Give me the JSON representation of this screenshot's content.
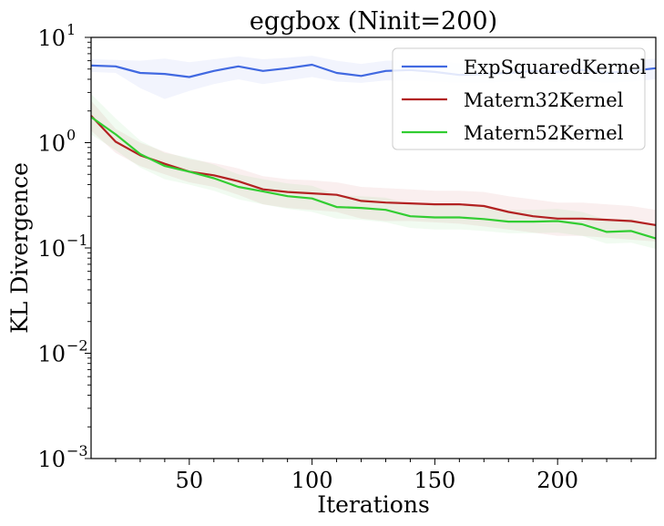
{
  "chart_data": {
    "type": "line",
    "title": "eggbox (Ninit=200)",
    "xlabel": "Iterations",
    "ylabel": "KL Divergence",
    "yscale": "log",
    "xlim": [
      10,
      240
    ],
    "ylim": [
      0.001,
      10
    ],
    "x_ticks": [
      50,
      100,
      150,
      200
    ],
    "y_ticks": [
      {
        "value": 10,
        "label": "10",
        "exp": "1"
      },
      {
        "value": 1,
        "label": "10",
        "exp": "0"
      },
      {
        "value": 0.1,
        "label": "10",
        "exp": "−1"
      },
      {
        "value": 0.01,
        "label": "10",
        "exp": "−2"
      },
      {
        "value": 0.001,
        "label": "10",
        "exp": "−3"
      }
    ],
    "legend_position": "top-right",
    "grid": false,
    "series": [
      {
        "name": "ExpSquaredKernel",
        "color": "#4169e1",
        "x": [
          10,
          20,
          30,
          40,
          50,
          60,
          70,
          80,
          90,
          100,
          110,
          120,
          130,
          140,
          150,
          160,
          170,
          180,
          190,
          200,
          210,
          220,
          230,
          240
        ],
        "y": [
          5.4,
          5.3,
          4.6,
          4.5,
          4.2,
          4.8,
          5.3,
          4.8,
          5.1,
          5.5,
          4.6,
          4.3,
          4.8,
          4.9,
          4.7,
          4.4,
          4.5,
          4.6,
          4.8,
          4.7,
          4.9,
          4.6,
          4.8,
          5.1
        ],
        "lower": [
          4.7,
          4.6,
          3.3,
          2.6,
          3.1,
          3.6,
          4.0,
          3.6,
          3.9,
          4.2,
          3.8,
          3.7,
          3.9,
          3.9,
          3.8,
          3.7,
          3.7,
          3.8,
          3.9,
          3.8,
          3.9,
          3.7,
          3.8,
          4.0
        ],
        "upper": [
          6.2,
          6.1,
          6.0,
          6.3,
          5.8,
          6.2,
          6.6,
          6.2,
          6.4,
          6.7,
          6.0,
          5.6,
          6.0,
          6.1,
          5.9,
          5.7,
          5.8,
          5.8,
          6.0,
          5.9,
          6.1,
          5.8,
          6.0,
          6.3
        ]
      },
      {
        "name": "Matern32Kernel",
        "color": "#b22222",
        "x": [
          10,
          20,
          30,
          40,
          50,
          60,
          70,
          80,
          90,
          100,
          110,
          120,
          130,
          140,
          150,
          160,
          170,
          180,
          190,
          200,
          210,
          220,
          230,
          240
        ],
        "y": [
          1.8,
          1.02,
          0.76,
          0.63,
          0.53,
          0.49,
          0.43,
          0.36,
          0.34,
          0.33,
          0.32,
          0.28,
          0.27,
          0.265,
          0.26,
          0.26,
          0.25,
          0.22,
          0.2,
          0.19,
          0.19,
          0.185,
          0.18,
          0.165
        ],
        "lower": [
          1.3,
          0.8,
          0.6,
          0.5,
          0.42,
          0.38,
          0.32,
          0.26,
          0.24,
          0.23,
          0.22,
          0.19,
          0.18,
          0.18,
          0.175,
          0.17,
          0.16,
          0.15,
          0.14,
          0.13,
          0.13,
          0.125,
          0.12,
          0.115
        ],
        "upper": [
          2.5,
          1.35,
          1.0,
          0.82,
          0.7,
          0.64,
          0.57,
          0.48,
          0.45,
          0.44,
          0.42,
          0.38,
          0.37,
          0.36,
          0.35,
          0.35,
          0.34,
          0.31,
          0.29,
          0.27,
          0.27,
          0.26,
          0.25,
          0.23
        ]
      },
      {
        "name": "Matern52Kernel",
        "color": "#32cd32",
        "x": [
          10,
          20,
          30,
          40,
          50,
          60,
          70,
          80,
          90,
          100,
          110,
          120,
          130,
          140,
          150,
          160,
          170,
          180,
          190,
          200,
          210,
          220,
          230,
          240
        ],
        "y": [
          1.75,
          1.2,
          0.78,
          0.6,
          0.53,
          0.46,
          0.38,
          0.345,
          0.31,
          0.295,
          0.245,
          0.24,
          0.23,
          0.2,
          0.195,
          0.195,
          0.188,
          0.178,
          0.178,
          0.18,
          0.168,
          0.142,
          0.145,
          0.123
        ],
        "lower": [
          1.2,
          0.85,
          0.58,
          0.45,
          0.4,
          0.35,
          0.29,
          0.26,
          0.235,
          0.22,
          0.19,
          0.185,
          0.175,
          0.155,
          0.15,
          0.15,
          0.145,
          0.138,
          0.138,
          0.14,
          0.13,
          0.11,
          0.112,
          0.098
        ],
        "upper": [
          2.9,
          1.7,
          1.05,
          0.8,
          0.72,
          0.62,
          0.5,
          0.45,
          0.41,
          0.39,
          0.32,
          0.31,
          0.3,
          0.26,
          0.255,
          0.255,
          0.245,
          0.23,
          0.23,
          0.235,
          0.22,
          0.185,
          0.19,
          0.16
        ]
      }
    ]
  }
}
